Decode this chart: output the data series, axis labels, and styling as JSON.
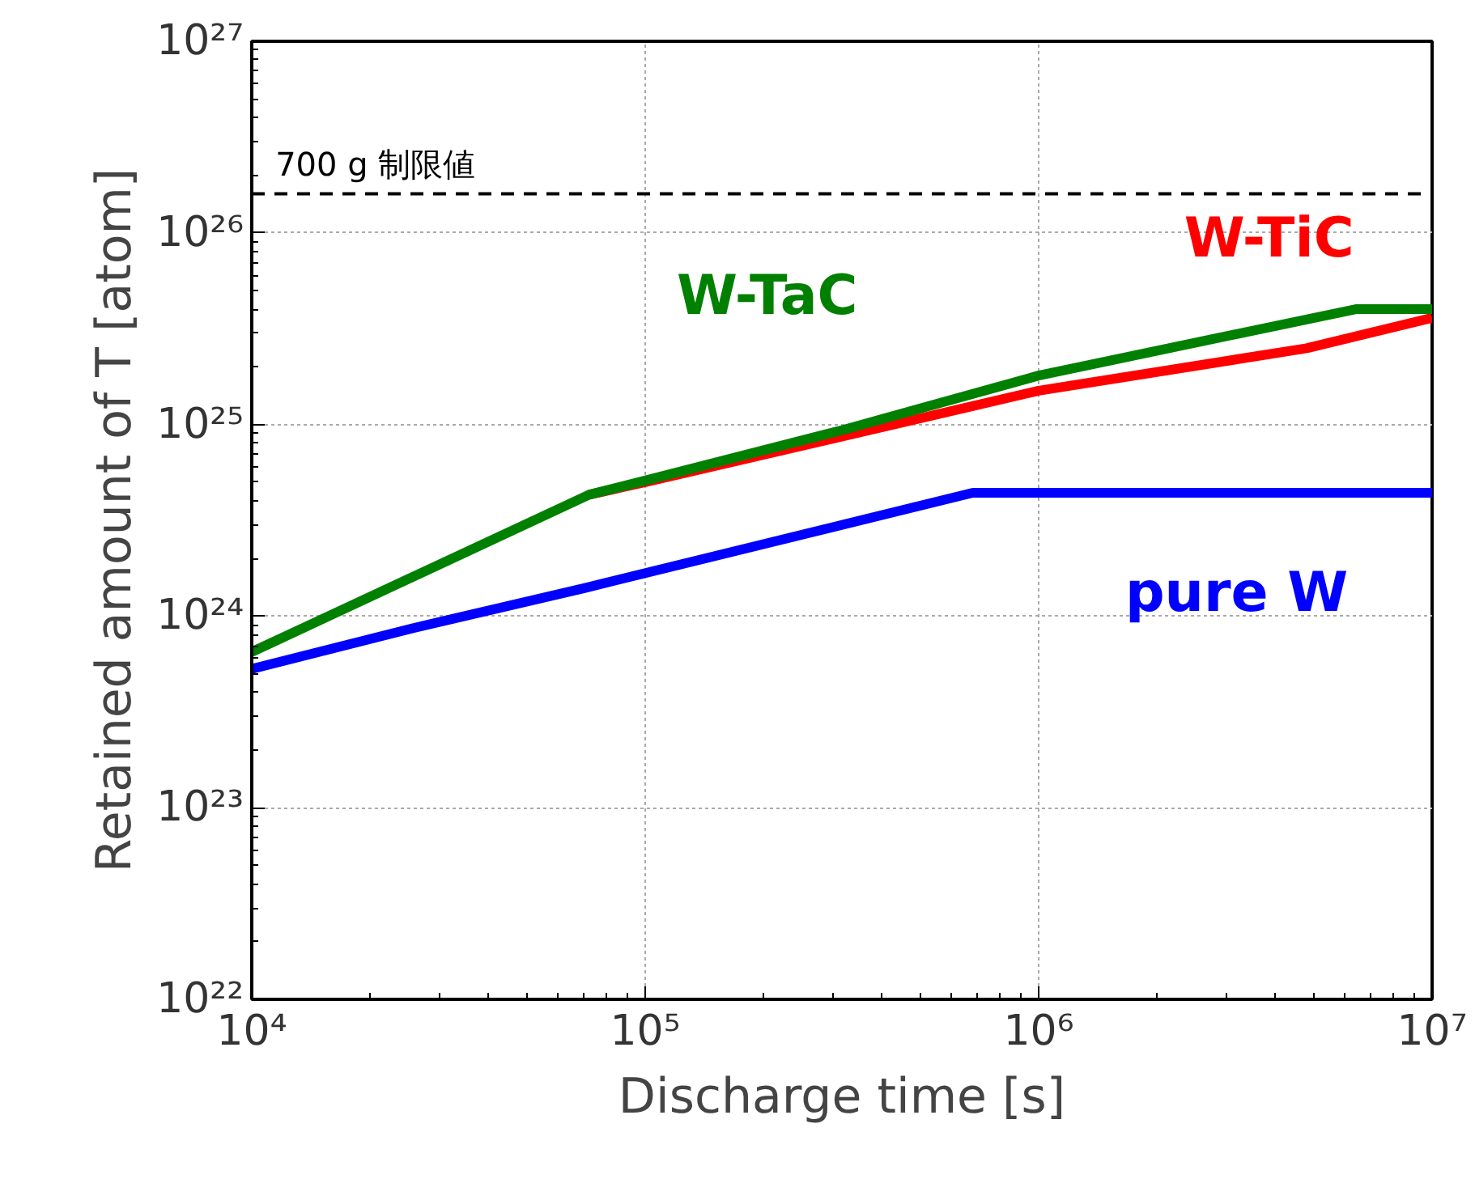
{
  "chart_data": {
    "type": "line",
    "xlabel": "Discharge time [s]",
    "ylabel": "Retained amount of T [atom]",
    "log": "xy",
    "grid": true,
    "marker": "none",
    "line_style": "solid",
    "xlim": [
      10000.0,
      10000000.0
    ],
    "ylim": [
      1e+22,
      1e+27
    ],
    "xticks": [
      {
        "value": 10000.0,
        "label": "10⁴"
      },
      {
        "value": 100000.0,
        "label": "10⁵"
      },
      {
        "value": 1000000.0,
        "label": "10⁶"
      },
      {
        "value": 10000000.0,
        "label": "10⁷"
      }
    ],
    "yticks": [
      {
        "value": 1e+22,
        "label": "10²²"
      },
      {
        "value": 1e+23,
        "label": "10²³"
      },
      {
        "value": 1e+24,
        "label": "10²⁴"
      },
      {
        "value": 1e+25,
        "label": "10²⁵"
      },
      {
        "value": 1e+26,
        "label": "10²⁶"
      },
      {
        "value": 1e+27,
        "label": "10²⁷"
      }
    ],
    "series": [
      {
        "name": "pure W",
        "color": "#0000ff",
        "x": [
          10000.0,
          26000.0,
          70000.0,
          680000.0,
          10000000.0
        ],
        "values": [
          5.3e+23,
          8.7e+23,
          1.4e+24,
          4.4e+24,
          4.4e+24
        ]
      },
      {
        "name": "W-TiC",
        "color": "#ff0000",
        "x": [
          72000.0,
          100000.0,
          320000.0,
          1000000.0,
          4800000.0,
          10000000.0
        ],
        "values": [
          4.3e+24,
          5e+24,
          8.7e+24,
          1.5e+25,
          2.5e+25,
          3.6e+25
        ]
      },
      {
        "name": "W-TaC",
        "color": "#008000",
        "x": [
          10000.0,
          72000.0,
          100000.0,
          320000.0,
          1000000.0,
          6400000.0,
          10000000.0
        ],
        "values": [
          6.5e+23,
          4.3e+24,
          5.1e+24,
          9.4e+24,
          1.8e+25,
          4e+25,
          4e+25
        ]
      }
    ],
    "ref_lines": [
      {
        "axis": "y",
        "value": 1.6e+26,
        "label": "700 g 制限値",
        "color": "#000000",
        "line_style": "dashed"
      }
    ]
  }
}
